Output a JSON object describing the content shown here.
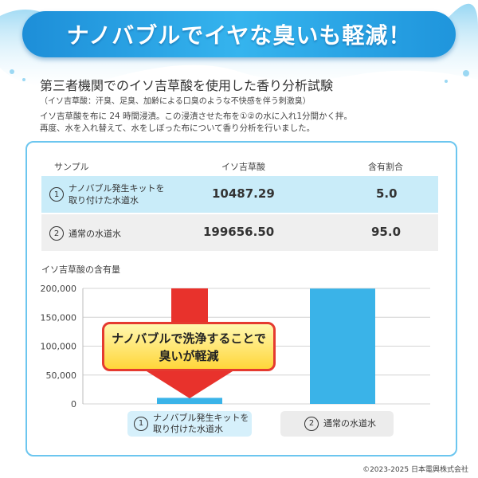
{
  "header": {
    "banner": "ナノバブルでイヤな臭いも軽減！"
  },
  "intro": {
    "subtitle": "第三者機関でのイソ吉草酸を使用した香り分析試験",
    "note": "（イソ吉草酸：汗臭、足臭、加齢による口臭のような不快感を伴う刺激臭）",
    "desc_line1": "イソ吉草酸を布に 24 時間浸漬。この浸漬させた布を①②の水に入れ1分間かく拌。",
    "desc_line2": "再度、水を入れ替えて、水をしぼった布について香り分析を行いました。"
  },
  "table": {
    "headers": [
      "サンプル",
      "イソ吉草酸",
      "含有割合"
    ],
    "rows": [
      {
        "num": "1",
        "label_line1": "ナノバブル発生キットを",
        "label_line2": "取り付けた水道水",
        "iso": "10487.29",
        "ratio": "5.0"
      },
      {
        "num": "2",
        "label_line1": "通常の水道水",
        "label_line2": "",
        "iso": "199656.50",
        "ratio": "95.0"
      }
    ]
  },
  "chart_data": {
    "type": "bar",
    "title": "イソ吉草酸の含有量",
    "categories": [
      "ナノバブル発生キットを取り付けた水道水",
      "通常の水道水"
    ],
    "values": [
      10487.29,
      199656.5
    ],
    "yticks": [
      "200,000",
      "150,000",
      "100,000",
      "50,000",
      "0"
    ],
    "ylim": [
      0,
      200000
    ],
    "grid": true,
    "bar_color": "#3ab3e8",
    "arrow_color": "#e8322c",
    "callout_line1": "ナノバブルで洗浄することで",
    "callout_line2": "臭いが軽減"
  },
  "categories_labels": [
    {
      "num": "1",
      "line1": "ナノバブル発生キットを",
      "line2": "取り付けた水道水"
    },
    {
      "num": "2",
      "line1": "通常の水道水",
      "line2": ""
    }
  ],
  "footer": {
    "copyright": "©2023-2025 日本電興株式会社"
  }
}
